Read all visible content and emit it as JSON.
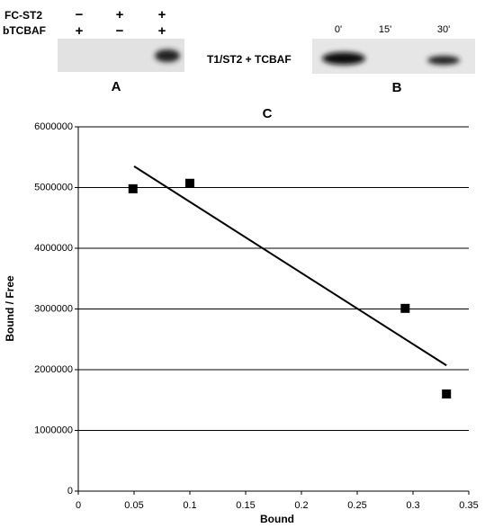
{
  "panel_a": {
    "label": "A",
    "rows": [
      {
        "name": "FC-ST2",
        "signs": [
          "−",
          "+",
          "+"
        ]
      },
      {
        "name": "bTCBAF",
        "signs": [
          "+",
          "−",
          "+"
        ]
      }
    ]
  },
  "panel_b": {
    "label": "B",
    "lanes": [
      "0'",
      "15'",
      "30'"
    ],
    "sample": "T1/ST2 + TCBAF"
  },
  "chart_data": {
    "type": "scatter",
    "title": "C",
    "x_label": "Bound",
    "y_label": "Bound / Free",
    "x": [
      0.049,
      0.1,
      0.293,
      0.33
    ],
    "values": [
      4980000,
      5070000,
      3010000,
      1600000
    ],
    "color": "#000000",
    "trendline": {
      "x": [
        0.05,
        0.33
      ],
      "values": [
        5350000,
        2070000
      ],
      "color": "#000000"
    },
    "xlim": [
      0,
      0.35
    ],
    "ylim": [
      0,
      6000000
    ],
    "xticks": [
      0,
      0.05,
      0.1,
      0.15,
      0.2,
      0.25,
      0.3,
      0.35
    ],
    "yticks": [
      0,
      1000000,
      2000000,
      3000000,
      4000000,
      5000000,
      6000000
    ],
    "grid": true
  }
}
